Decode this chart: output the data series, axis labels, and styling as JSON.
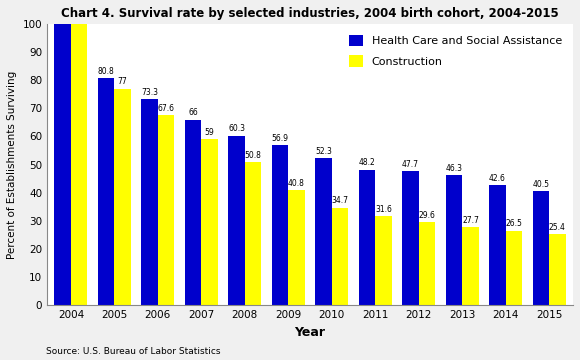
{
  "title": "Chart 4. Survival rate by selected industries, 2004 birth cohort, 2004-2015",
  "years": [
    2004,
    2005,
    2006,
    2007,
    2008,
    2009,
    2010,
    2011,
    2012,
    2013,
    2014,
    2015
  ],
  "health_care": [
    100,
    80.8,
    73.3,
    66,
    60.3,
    56.9,
    52.3,
    48.2,
    47.7,
    46.3,
    42.6,
    40.5
  ],
  "construction": [
    100,
    77,
    67.6,
    59,
    50.8,
    40.8,
    34.7,
    31.6,
    29.6,
    27.7,
    26.5,
    25.4
  ],
  "health_care_labels": [
    "",
    "80.8",
    "73.3",
    "66",
    "60.3",
    "56.9",
    "52.3",
    "48.2",
    "47.7",
    "46.3",
    "42.6",
    "40.5"
  ],
  "construction_labels": [
    "",
    "77",
    "67.6",
    "59",
    "50.8",
    "40.8",
    "34.7",
    "31.6",
    "29.6",
    "27.7",
    "26.5",
    "25.4"
  ],
  "health_care_color": "#0000CC",
  "construction_color": "#FFFF00",
  "xlabel": "Year",
  "ylabel": "Percent of Establishments Surviving",
  "ylim": [
    0,
    100
  ],
  "yticks": [
    0,
    10,
    20,
    30,
    40,
    50,
    60,
    70,
    80,
    90,
    100
  ],
  "legend_health": "Health Care and Social Assistance",
  "legend_construction": "Construction",
  "source": "Source: U.S. Bureau of Labor Statistics",
  "bar_width": 0.38,
  "bg_color": "#f0f0f0",
  "plot_bg_color": "#ffffff"
}
